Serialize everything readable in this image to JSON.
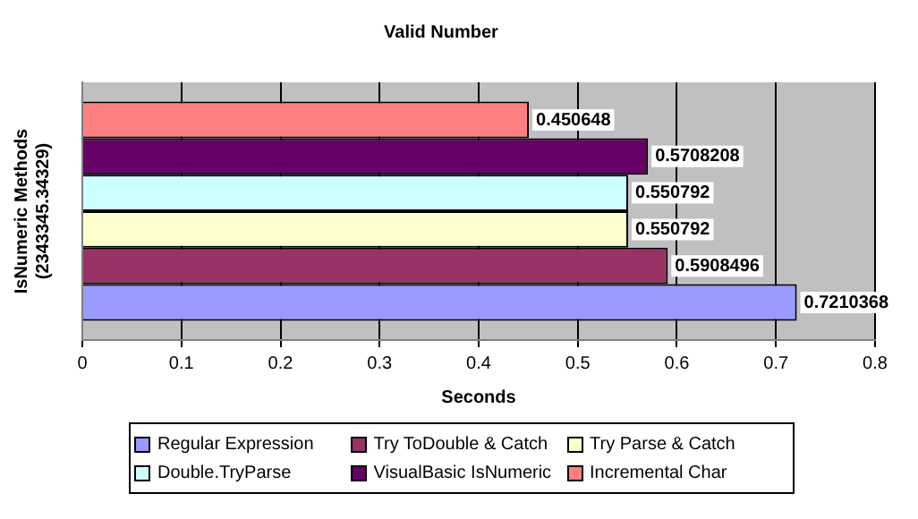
{
  "chart_data": {
    "type": "bar",
    "orientation": "horizontal",
    "title": "Valid Number",
    "xlabel": "Seconds",
    "ylabel": "IsNumeric Methods\n(2343345.34329)",
    "categories": [
      null
    ],
    "series": [
      {
        "name": "Regular Expression",
        "color": "#9999ff",
        "values": [
          0.7210368
        ]
      },
      {
        "name": "Try ToDouble & Catch",
        "color": "#993366",
        "values": [
          0.5908496
        ]
      },
      {
        "name": "Try Parse & Catch",
        "color": "#ffffcc",
        "values": [
          0.550792
        ]
      },
      {
        "name": "Double.TryParse",
        "color": "#ccffff",
        "values": [
          0.550792
        ]
      },
      {
        "name": "VisualBasic IsNumeric",
        "color": "#660066",
        "values": [
          0.5708208
        ]
      },
      {
        "name": "Incremental Char",
        "color": "#ff8080",
        "values": [
          0.450648
        ]
      }
    ],
    "xlim": [
      0,
      0.8
    ],
    "xticks": [
      0,
      0.1,
      0.2,
      0.3,
      0.4,
      0.5,
      0.6,
      0.7,
      0.8
    ],
    "grid": "x",
    "legend": "bottom",
    "data_labels": true
  }
}
